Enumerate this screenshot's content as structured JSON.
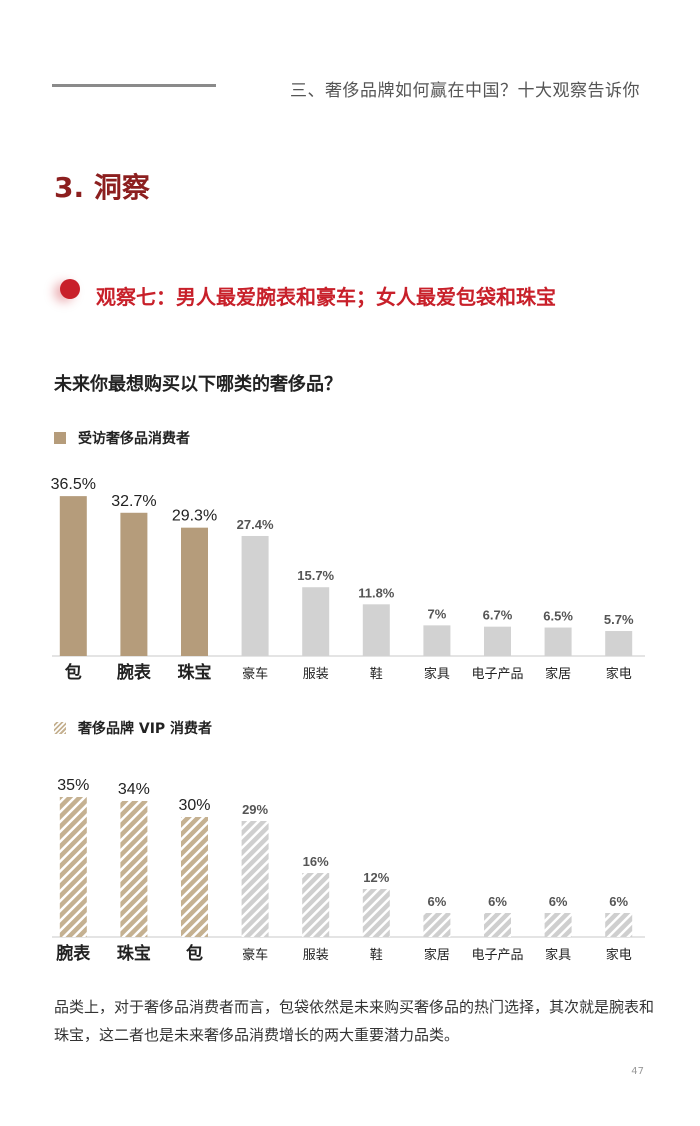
{
  "header": {
    "title": "三、奢侈品牌如何赢在中国？十大观察告诉你"
  },
  "section": {
    "title": "3. 洞察"
  },
  "observation": {
    "title": "观察七：男人最爱腕表和豪车；女人最爱包袋和珠宝"
  },
  "question": "未来你最想购买以下哪类的奢侈品？",
  "colors": {
    "accent_red": "#c8202a",
    "title_dark_red": "#8c1f1f",
    "bar_highlight": "#b59c7b",
    "bar_gray": "#d2d2d2",
    "hatch_highlight": "#c5b191",
    "hatch_gray": "#cfcfcf"
  },
  "chart_data": [
    {
      "type": "bar",
      "legend": "受访奢侈品消费者",
      "categories": [
        "包",
        "腕表",
        "珠宝",
        "豪车",
        "服装",
        "鞋",
        "家具",
        "电子产品",
        "家居",
        "家电"
      ],
      "values": [
        36.5,
        32.7,
        29.3,
        27.4,
        15.7,
        11.8,
        7,
        6.7,
        6.5,
        5.7
      ],
      "value_labels": [
        "36.5%",
        "32.7%",
        "29.3%",
        "27.4%",
        "15.7%",
        "11.8%",
        "7%",
        "6.7%",
        "6.5%",
        "5.7%"
      ],
      "highlighted": [
        true,
        true,
        true,
        false,
        false,
        false,
        false,
        false,
        false,
        false
      ],
      "pattern": "solid",
      "ylim": [
        0,
        40
      ]
    },
    {
      "type": "bar",
      "legend": "奢侈品牌 VIP 消费者",
      "categories": [
        "腕表",
        "珠宝",
        "包",
        "豪车",
        "服装",
        "鞋",
        "家居",
        "电子产品",
        "家具",
        "家电"
      ],
      "values": [
        35,
        34,
        30,
        29,
        16,
        12,
        6,
        6,
        6,
        6
      ],
      "value_labels": [
        "35%",
        "34%",
        "30%",
        "29%",
        "16%",
        "12%",
        "6%",
        "6%",
        "6%",
        "6%"
      ],
      "highlighted": [
        true,
        true,
        true,
        false,
        false,
        false,
        false,
        false,
        false,
        false
      ],
      "pattern": "hatched",
      "ylim": [
        0,
        40
      ]
    }
  ],
  "footer": {
    "text": "品类上，对于奢侈品消费者而言，包袋依然是未来购买奢侈品的热门选择，其次就是腕表和珠宝，这二者也是未来奢侈品消费增长的两大重要潜力品类。"
  },
  "page_number": "47"
}
